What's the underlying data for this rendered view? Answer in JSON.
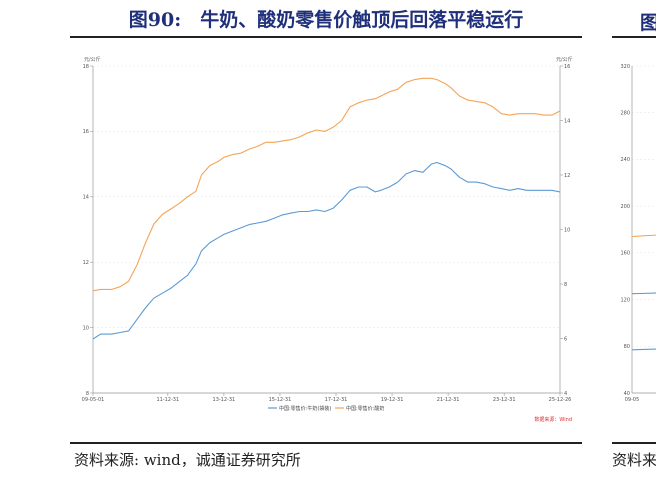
{
  "figure": {
    "title": "图90:　牛奶、酸奶零售价触顶后回落平稳运行",
    "source": "资料来源: wind，诚通证券研究所",
    "right_fragment_title": "图",
    "right_fragment_source": "资料来"
  },
  "chart_data": [
    {
      "type": "line",
      "title": "",
      "ylabel_left": "元/公斤",
      "ylabel_right": "元/公斤",
      "xlabel": "",
      "x_tick_labels": [
        "09-05-01",
        "11-12-31",
        "13-12-31",
        "15-12-31",
        "17-12-31",
        "19-12-31",
        "21-12-31",
        "23-12-31",
        "25-12-26"
      ],
      "ylim_left": [
        8,
        18
      ],
      "yticks_left": [
        "8",
        "10",
        "12",
        "14",
        "16",
        "18"
      ],
      "ylim_right": [
        4,
        16
      ],
      "yticks_right": [
        "4",
        "6",
        "8",
        "10",
        "12",
        "14",
        "16"
      ],
      "grid": true,
      "legend_placement": "bottom-center",
      "annotation": "数据来源：Wind",
      "colors": {
        "series_0": "#5b9bd5",
        "series_1": "#f4a455",
        "annotation": "#e03030",
        "axis": "#999999"
      },
      "series": [
        {
          "name": "中国:零售价:牛奶(袋装)",
          "axis": "left",
          "x": [
            2009.33,
            2009.6,
            2010.0,
            2010.3,
            2010.6,
            2010.9,
            2011.2,
            2011.5,
            2011.8,
            2012.1,
            2012.4,
            2012.7,
            2013.0,
            2013.2,
            2013.5,
            2013.8,
            2014.0,
            2014.3,
            2014.6,
            2014.9,
            2015.2,
            2015.5,
            2015.8,
            2016.1,
            2016.4,
            2016.7,
            2017.0,
            2017.3,
            2017.6,
            2017.9,
            2018.2,
            2018.5,
            2018.8,
            2019.1,
            2019.4,
            2019.6,
            2019.9,
            2020.2,
            2020.5,
            2020.8,
            2021.1,
            2021.4,
            2021.6,
            2021.9,
            2022.1,
            2022.4,
            2022.7,
            2023.0,
            2023.3,
            2023.6,
            2023.9,
            2024.2,
            2024.5,
            2024.8,
            2025.1,
            2025.4,
            2025.7,
            2025.99
          ],
          "values": [
            9.65,
            9.8,
            9.8,
            9.85,
            9.9,
            10.25,
            10.6,
            10.9,
            11.05,
            11.2,
            11.4,
            11.6,
            11.95,
            12.35,
            12.6,
            12.75,
            12.85,
            12.95,
            13.05,
            13.15,
            13.2,
            13.25,
            13.35,
            13.45,
            13.5,
            13.55,
            13.55,
            13.6,
            13.55,
            13.65,
            13.9,
            14.2,
            14.3,
            14.3,
            14.15,
            14.2,
            14.3,
            14.45,
            14.7,
            14.8,
            14.75,
            15.0,
            15.05,
            14.95,
            14.85,
            14.6,
            14.45,
            14.45,
            14.4,
            14.3,
            14.25,
            14.2,
            14.25,
            14.2,
            14.2,
            14.2,
            14.2,
            14.15
          ]
        },
        {
          "name": "中国:零售价:酸奶",
          "axis": "right",
          "x": [
            2009.33,
            2009.6,
            2010.0,
            2010.3,
            2010.6,
            2010.9,
            2011.2,
            2011.5,
            2011.8,
            2012.1,
            2012.4,
            2012.7,
            2013.0,
            2013.2,
            2013.5,
            2013.8,
            2014.0,
            2014.3,
            2014.6,
            2014.9,
            2015.2,
            2015.5,
            2015.8,
            2016.1,
            2016.4,
            2016.7,
            2017.0,
            2017.3,
            2017.6,
            2017.9,
            2018.2,
            2018.5,
            2018.8,
            2019.1,
            2019.4,
            2019.6,
            2019.9,
            2020.2,
            2020.5,
            2020.8,
            2021.1,
            2021.4,
            2021.6,
            2021.9,
            2022.1,
            2022.4,
            2022.7,
            2023.0,
            2023.3,
            2023.6,
            2023.9,
            2024.2,
            2024.5,
            2024.8,
            2025.1,
            2025.4,
            2025.7,
            2025.99
          ],
          "values": [
            7.75,
            7.8,
            7.8,
            7.9,
            8.1,
            8.7,
            9.5,
            10.2,
            10.55,
            10.75,
            10.95,
            11.2,
            11.4,
            12.0,
            12.35,
            12.5,
            12.65,
            12.75,
            12.8,
            12.95,
            13.05,
            13.2,
            13.2,
            13.25,
            13.3,
            13.4,
            13.55,
            13.65,
            13.6,
            13.75,
            14.0,
            14.5,
            14.65,
            14.75,
            14.8,
            14.9,
            15.05,
            15.15,
            15.4,
            15.5,
            15.55,
            15.55,
            15.5,
            15.35,
            15.2,
            14.9,
            14.75,
            14.7,
            14.65,
            14.5,
            14.25,
            14.2,
            14.25,
            14.25,
            14.25,
            14.2,
            14.2,
            14.35
          ]
        }
      ]
    },
    {
      "type": "line",
      "title": "",
      "ylim_left": [
        40,
        320
      ],
      "yticks_left": [
        "40",
        "80",
        "120",
        "160",
        "200",
        "240",
        "280",
        "320"
      ],
      "x_tick_labels": [
        "09-05"
      ],
      "grid": true,
      "colors": {
        "series_0": "#5b9bd5",
        "series_1": "#f4a455"
      },
      "series": [
        {
          "name": "",
          "x": [
            0,
            1
          ],
          "values": [
            174,
            176
          ]
        },
        {
          "name": "",
          "x": [
            0,
            1
          ],
          "values": [
            125,
            126
          ]
        },
        {
          "name": "",
          "x": [
            0,
            1
          ],
          "values": [
            77,
            78
          ]
        }
      ]
    }
  ]
}
